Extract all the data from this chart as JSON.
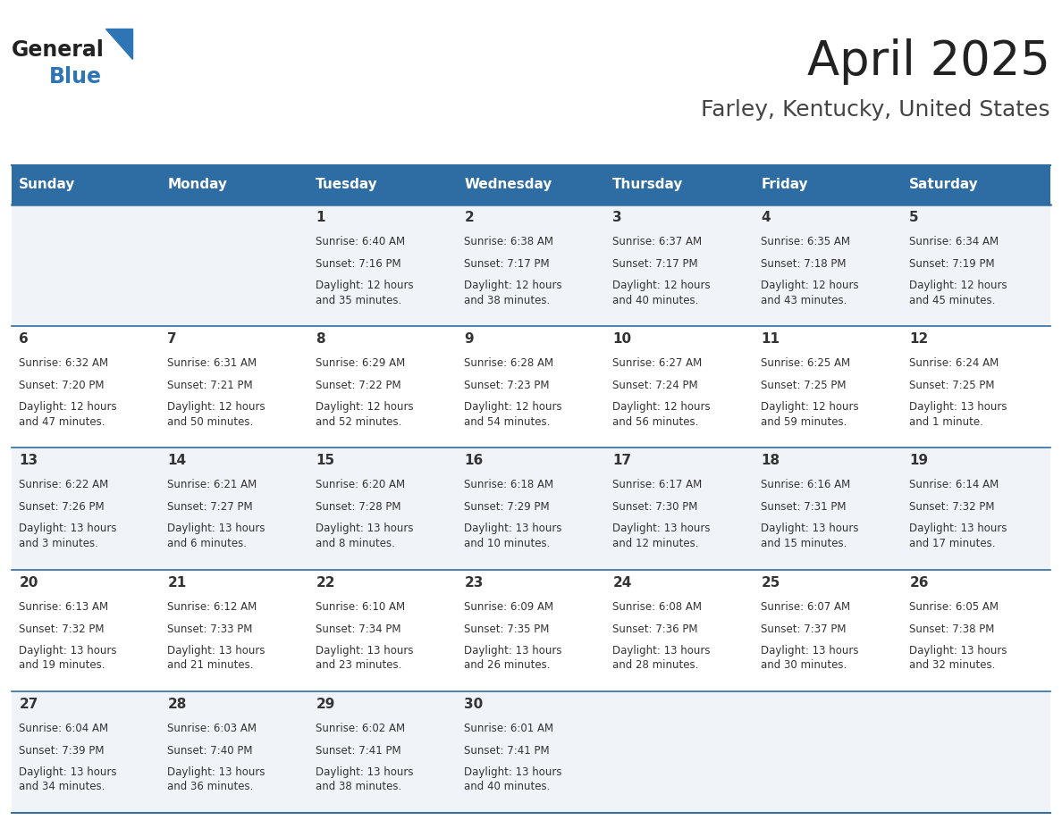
{
  "title": "April 2025",
  "subtitle": "Farley, Kentucky, United States",
  "header_bg": "#2E6DA4",
  "header_text": "#FFFFFF",
  "cell_bg_even": "#F0F4F8",
  "cell_bg_odd": "#FFFFFF",
  "divider_color": "#2E6DA4",
  "text_color": "#333333",
  "days_of_week": [
    "Sunday",
    "Monday",
    "Tuesday",
    "Wednesday",
    "Thursday",
    "Friday",
    "Saturday"
  ],
  "weeks": [
    [
      {
        "day": "",
        "sunrise": "",
        "sunset": "",
        "daylight": ""
      },
      {
        "day": "",
        "sunrise": "",
        "sunset": "",
        "daylight": ""
      },
      {
        "day": "1",
        "sunrise": "Sunrise: 6:40 AM",
        "sunset": "Sunset: 7:16 PM",
        "daylight": "Daylight: 12 hours\nand 35 minutes."
      },
      {
        "day": "2",
        "sunrise": "Sunrise: 6:38 AM",
        "sunset": "Sunset: 7:17 PM",
        "daylight": "Daylight: 12 hours\nand 38 minutes."
      },
      {
        "day": "3",
        "sunrise": "Sunrise: 6:37 AM",
        "sunset": "Sunset: 7:17 PM",
        "daylight": "Daylight: 12 hours\nand 40 minutes."
      },
      {
        "day": "4",
        "sunrise": "Sunrise: 6:35 AM",
        "sunset": "Sunset: 7:18 PM",
        "daylight": "Daylight: 12 hours\nand 43 minutes."
      },
      {
        "day": "5",
        "sunrise": "Sunrise: 6:34 AM",
        "sunset": "Sunset: 7:19 PM",
        "daylight": "Daylight: 12 hours\nand 45 minutes."
      }
    ],
    [
      {
        "day": "6",
        "sunrise": "Sunrise: 6:32 AM",
        "sunset": "Sunset: 7:20 PM",
        "daylight": "Daylight: 12 hours\nand 47 minutes."
      },
      {
        "day": "7",
        "sunrise": "Sunrise: 6:31 AM",
        "sunset": "Sunset: 7:21 PM",
        "daylight": "Daylight: 12 hours\nand 50 minutes."
      },
      {
        "day": "8",
        "sunrise": "Sunrise: 6:29 AM",
        "sunset": "Sunset: 7:22 PM",
        "daylight": "Daylight: 12 hours\nand 52 minutes."
      },
      {
        "day": "9",
        "sunrise": "Sunrise: 6:28 AM",
        "sunset": "Sunset: 7:23 PM",
        "daylight": "Daylight: 12 hours\nand 54 minutes."
      },
      {
        "day": "10",
        "sunrise": "Sunrise: 6:27 AM",
        "sunset": "Sunset: 7:24 PM",
        "daylight": "Daylight: 12 hours\nand 56 minutes."
      },
      {
        "day": "11",
        "sunrise": "Sunrise: 6:25 AM",
        "sunset": "Sunset: 7:25 PM",
        "daylight": "Daylight: 12 hours\nand 59 minutes."
      },
      {
        "day": "12",
        "sunrise": "Sunrise: 6:24 AM",
        "sunset": "Sunset: 7:25 PM",
        "daylight": "Daylight: 13 hours\nand 1 minute."
      }
    ],
    [
      {
        "day": "13",
        "sunrise": "Sunrise: 6:22 AM",
        "sunset": "Sunset: 7:26 PM",
        "daylight": "Daylight: 13 hours\nand 3 minutes."
      },
      {
        "day": "14",
        "sunrise": "Sunrise: 6:21 AM",
        "sunset": "Sunset: 7:27 PM",
        "daylight": "Daylight: 13 hours\nand 6 minutes."
      },
      {
        "day": "15",
        "sunrise": "Sunrise: 6:20 AM",
        "sunset": "Sunset: 7:28 PM",
        "daylight": "Daylight: 13 hours\nand 8 minutes."
      },
      {
        "day": "16",
        "sunrise": "Sunrise: 6:18 AM",
        "sunset": "Sunset: 7:29 PM",
        "daylight": "Daylight: 13 hours\nand 10 minutes."
      },
      {
        "day": "17",
        "sunrise": "Sunrise: 6:17 AM",
        "sunset": "Sunset: 7:30 PM",
        "daylight": "Daylight: 13 hours\nand 12 minutes."
      },
      {
        "day": "18",
        "sunrise": "Sunrise: 6:16 AM",
        "sunset": "Sunset: 7:31 PM",
        "daylight": "Daylight: 13 hours\nand 15 minutes."
      },
      {
        "day": "19",
        "sunrise": "Sunrise: 6:14 AM",
        "sunset": "Sunset: 7:32 PM",
        "daylight": "Daylight: 13 hours\nand 17 minutes."
      }
    ],
    [
      {
        "day": "20",
        "sunrise": "Sunrise: 6:13 AM",
        "sunset": "Sunset: 7:32 PM",
        "daylight": "Daylight: 13 hours\nand 19 minutes."
      },
      {
        "day": "21",
        "sunrise": "Sunrise: 6:12 AM",
        "sunset": "Sunset: 7:33 PM",
        "daylight": "Daylight: 13 hours\nand 21 minutes."
      },
      {
        "day": "22",
        "sunrise": "Sunrise: 6:10 AM",
        "sunset": "Sunset: 7:34 PM",
        "daylight": "Daylight: 13 hours\nand 23 minutes."
      },
      {
        "day": "23",
        "sunrise": "Sunrise: 6:09 AM",
        "sunset": "Sunset: 7:35 PM",
        "daylight": "Daylight: 13 hours\nand 26 minutes."
      },
      {
        "day": "24",
        "sunrise": "Sunrise: 6:08 AM",
        "sunset": "Sunset: 7:36 PM",
        "daylight": "Daylight: 13 hours\nand 28 minutes."
      },
      {
        "day": "25",
        "sunrise": "Sunrise: 6:07 AM",
        "sunset": "Sunset: 7:37 PM",
        "daylight": "Daylight: 13 hours\nand 30 minutes."
      },
      {
        "day": "26",
        "sunrise": "Sunrise: 6:05 AM",
        "sunset": "Sunset: 7:38 PM",
        "daylight": "Daylight: 13 hours\nand 32 minutes."
      }
    ],
    [
      {
        "day": "27",
        "sunrise": "Sunrise: 6:04 AM",
        "sunset": "Sunset: 7:39 PM",
        "daylight": "Daylight: 13 hours\nand 34 minutes."
      },
      {
        "day": "28",
        "sunrise": "Sunrise: 6:03 AM",
        "sunset": "Sunset: 7:40 PM",
        "daylight": "Daylight: 13 hours\nand 36 minutes."
      },
      {
        "day": "29",
        "sunrise": "Sunrise: 6:02 AM",
        "sunset": "Sunset: 7:41 PM",
        "daylight": "Daylight: 13 hours\nand 38 minutes."
      },
      {
        "day": "30",
        "sunrise": "Sunrise: 6:01 AM",
        "sunset": "Sunset: 7:41 PM",
        "daylight": "Daylight: 13 hours\nand 40 minutes."
      },
      {
        "day": "",
        "sunrise": "",
        "sunset": "",
        "daylight": ""
      },
      {
        "day": "",
        "sunrise": "",
        "sunset": "",
        "daylight": ""
      },
      {
        "day": "",
        "sunrise": "",
        "sunset": "",
        "daylight": ""
      }
    ]
  ],
  "logo_general_color": "#222222",
  "logo_blue_color": "#2E75B6",
  "logo_triangle_color": "#2E75B6",
  "title_color": "#222222",
  "subtitle_color": "#444444",
  "title_fontsize": 38,
  "subtitle_fontsize": 18,
  "header_fontsize": 11,
  "day_num_fontsize": 11,
  "cell_text_fontsize": 8.5
}
